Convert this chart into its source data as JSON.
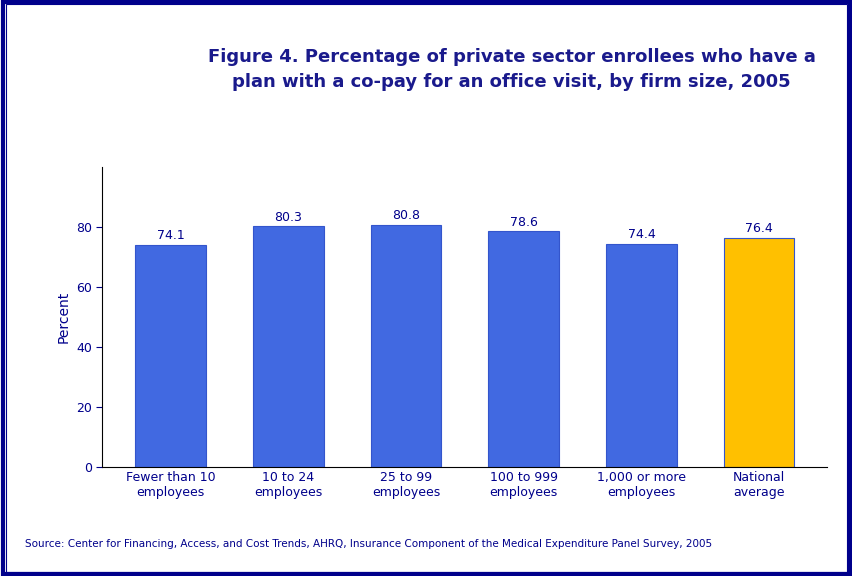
{
  "categories": [
    "Fewer than 10\nemployees",
    "10 to 24\nemployees",
    "25 to 99\nemployees",
    "100 to 999\nemployees",
    "1,000 or more\nemployees",
    "National\naverage"
  ],
  "values": [
    74.1,
    80.3,
    80.8,
    78.6,
    74.4,
    76.4
  ],
  "bar_colors": [
    "#4169E1",
    "#4169E1",
    "#4169E1",
    "#4169E1",
    "#4169E1",
    "#FFC000"
  ],
  "title": "Figure 4. Percentage of private sector enrollees who have a\nplan with a co-pay for an office visit, by firm size, 2005",
  "ylabel": "Percent",
  "ylim": [
    0,
    100
  ],
  "yticks": [
    0,
    20,
    40,
    60,
    80
  ],
  "title_color": "#1a1a8c",
  "title_fontsize": 13,
  "label_fontsize": 9,
  "value_fontsize": 9,
  "ylabel_fontsize": 10,
  "source_text": "Source: Center for Financing, Access, and Cost Trends, AHRQ, Insurance Component of the Medical Expenditure Panel Survey, 2005",
  "background_color": "#FFFFFF",
  "divider_color": "#00008B",
  "bar_edgecolor": "#3355CC",
  "axis_color": "#000000",
  "tick_color": "#00008B",
  "label_color": "#00008B",
  "border_color": "#00008B"
}
